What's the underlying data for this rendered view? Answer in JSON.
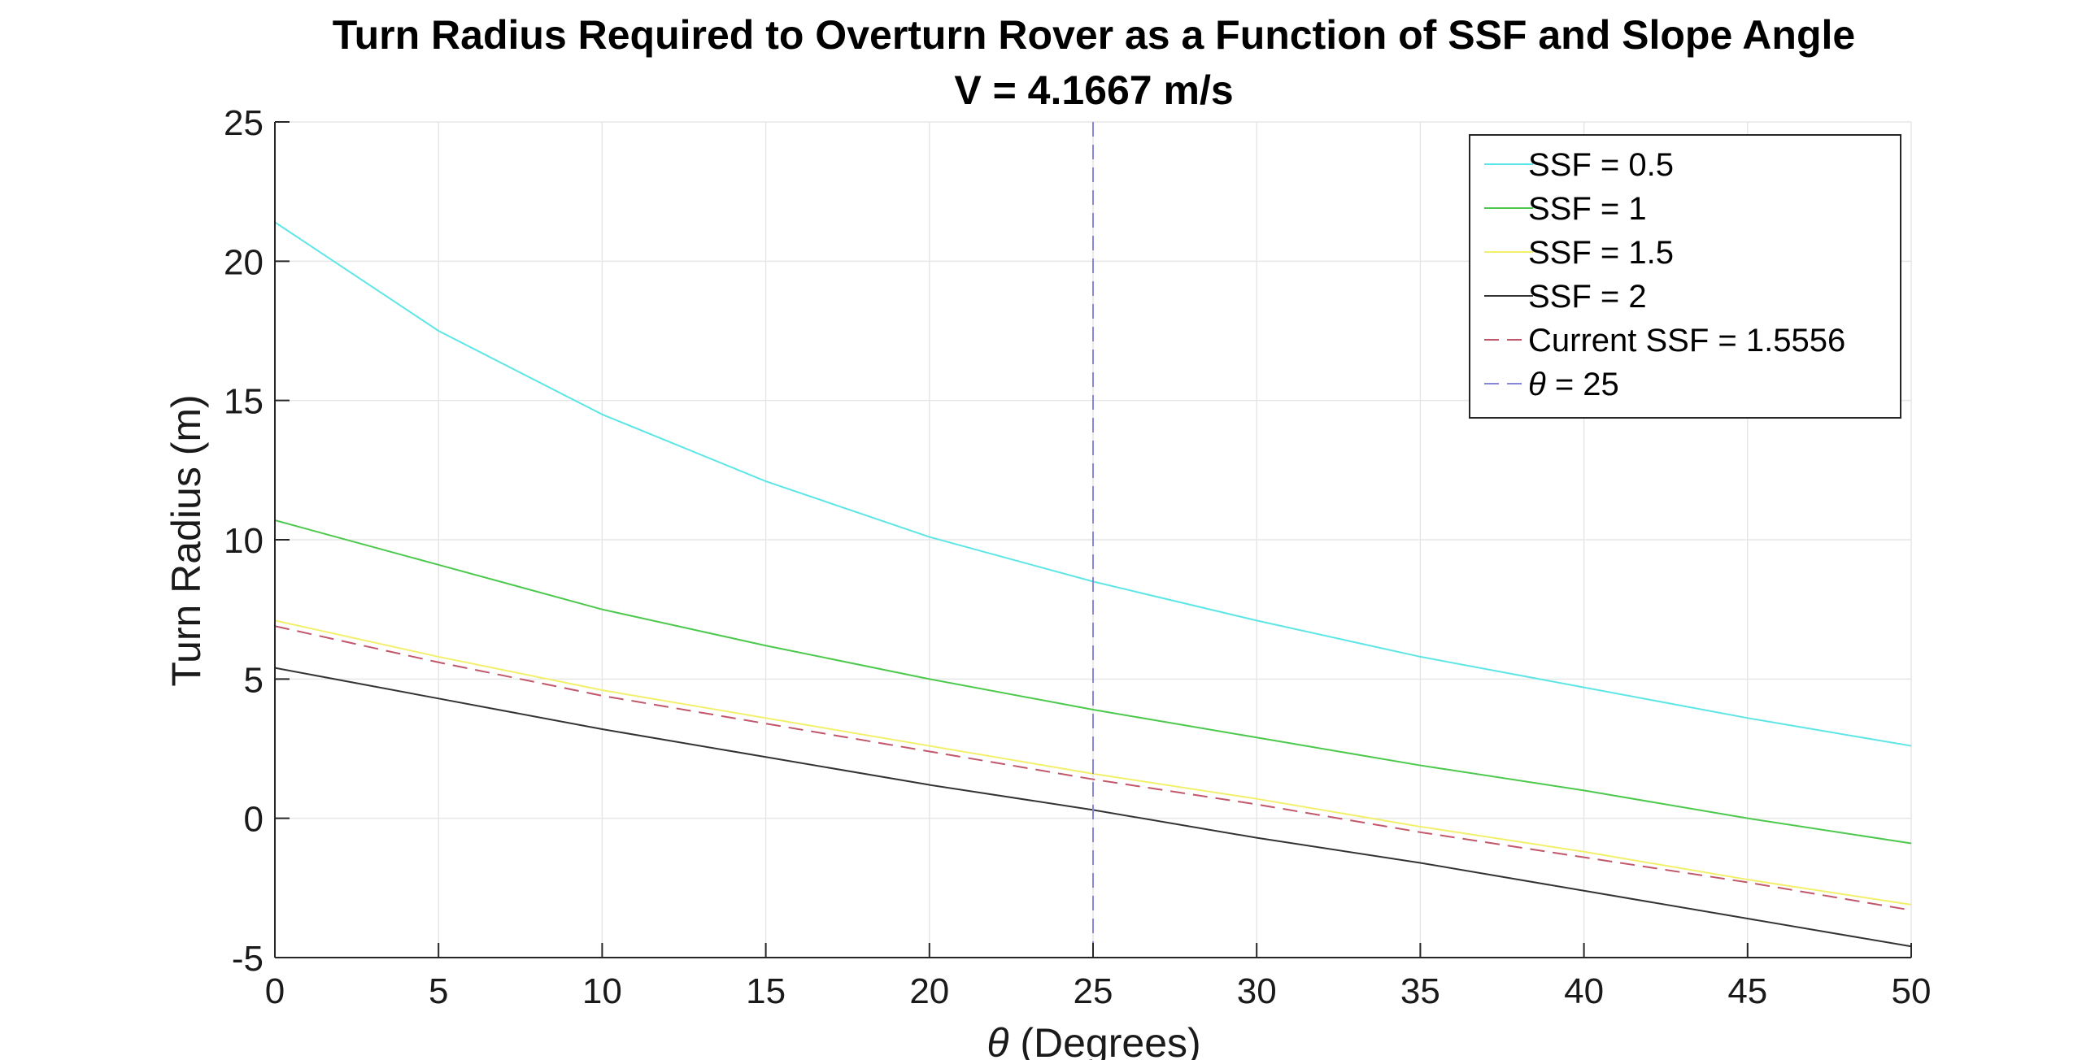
{
  "chart_data": {
    "type": "line",
    "title": "Turn Radius Required to Overturn Rover as a Function of SSF and Slope Angle",
    "subtitle": "V = 4.1667 m/s",
    "xlabel_symbol": "θ",
    "xlabel_text": " (Degrees)",
    "ylabel": "Turn Radius (m)",
    "xlim": [
      0,
      50
    ],
    "ylim": [
      -5,
      25
    ],
    "xticks": [
      "0",
      "5",
      "10",
      "15",
      "20",
      "25",
      "30",
      "35",
      "40",
      "45",
      "50"
    ],
    "yticks": [
      "-5",
      "0",
      "5",
      "10",
      "15",
      "20",
      "25"
    ],
    "grid": true,
    "legend_position": "top-right",
    "x": [
      0,
      5,
      10,
      15,
      20,
      25,
      30,
      35,
      40,
      45,
      50
    ],
    "series": [
      {
        "name": "SSF = 0.5",
        "color": "#5ee6e6",
        "dash": "solid",
        "values": [
          21.4,
          17.5,
          14.5,
          12.1,
          10.1,
          8.5,
          7.1,
          5.8,
          4.7,
          3.6,
          2.6
        ]
      },
      {
        "name": "SSF = 1",
        "color": "#4cc94c",
        "dash": "solid",
        "values": [
          10.7,
          9.1,
          7.5,
          6.2,
          5.0,
          3.9,
          2.9,
          1.9,
          1.0,
          0.0,
          -0.9
        ]
      },
      {
        "name": "SSF = 1.5",
        "color": "#f2f06a",
        "dash": "solid",
        "values": [
          7.1,
          5.8,
          4.6,
          3.6,
          2.6,
          1.6,
          0.7,
          -0.3,
          -1.2,
          -2.2,
          -3.1
        ]
      },
      {
        "name": "SSF = 2",
        "color": "#333333",
        "dash": "solid",
        "values": [
          5.4,
          4.3,
          3.2,
          2.2,
          1.2,
          0.3,
          -0.7,
          -1.6,
          -2.6,
          -3.6,
          -4.6
        ]
      },
      {
        "name": "Current SSF = 1.5556",
        "color": "#c2566a",
        "dash": "dashed",
        "values": [
          6.9,
          5.6,
          4.4,
          3.4,
          2.4,
          1.4,
          0.5,
          -0.5,
          -1.4,
          -2.3,
          -3.3
        ]
      }
    ],
    "vline": {
      "name_symbol": "θ",
      "name_text": " = 25",
      "x": 25,
      "color": "#8a86d8",
      "dash": "dashed"
    }
  }
}
